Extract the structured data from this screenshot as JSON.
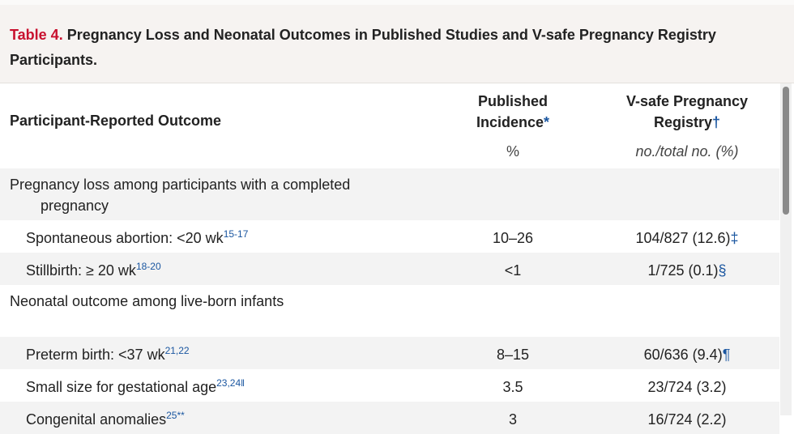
{
  "title": {
    "label": "Table 4.",
    "text": "Pregnancy Loss and Neonatal Outcomes in Published Studies and V-safe Pregnancy Registry Participants."
  },
  "columns": [
    {
      "header": [
        "Participant-Reported Outcome"
      ]
    },
    {
      "header": [
        "Published",
        "Incidence"
      ],
      "mark": "*",
      "unit": "%"
    },
    {
      "header": [
        "V-safe Pregnancy",
        "Registry"
      ],
      "mark": "†",
      "unit": "no./total no. (%)"
    }
  ],
  "rows": [
    {
      "label": "Pregnancy loss among participants with a completed pregnancy"
    },
    {
      "label": "Spontaneous abortion: <20 wk",
      "refs": "15-17",
      "published": "10–26",
      "vsafe": "104/827 (12.6)",
      "note": "‡"
    },
    {
      "label": "Stillbirth: ≥ 20 wk",
      "refs": "18-20",
      "published": "<1",
      "vsafe": "1/725 (0.1)",
      "note": "§"
    },
    {
      "label": "Neonatal outcome among live-born infants"
    },
    {
      "label": "Preterm birth: <37 wk",
      "refs": "21,22",
      "published": "8–15",
      "vsafe": "60/636 (9.4)",
      "note": "¶"
    },
    {
      "label": "Small size for gestational age",
      "refs": "23,24",
      "note_after_refs": "‖",
      "published": "3.5",
      "vsafe": "23/724 (3.2)"
    },
    {
      "label": "Congenital anomalies",
      "refs": "25",
      "note_after_refs": "**",
      "published": "3",
      "vsafe": "16/724 (2.2)"
    }
  ]
}
